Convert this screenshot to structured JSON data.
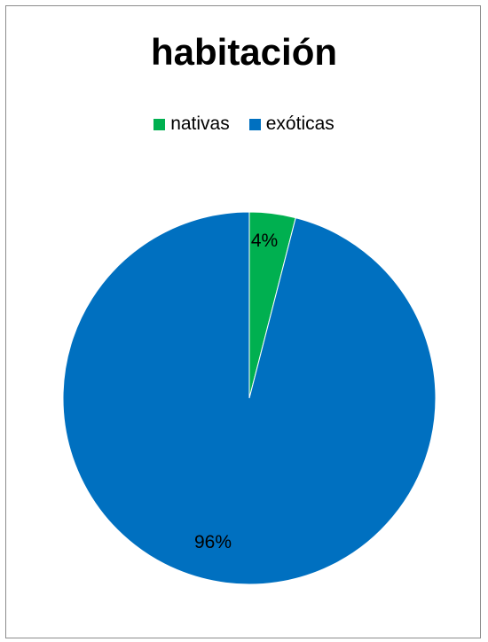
{
  "chart_data": {
    "type": "pie",
    "title": "habitación",
    "legend_position": "top",
    "slices": [
      {
        "label": "nativas",
        "value": 4,
        "data_label": "4%",
        "color": "#00b050"
      },
      {
        "label": "exóticas",
        "value": 96,
        "data_label": "96%",
        "color": "#0070c0"
      }
    ]
  }
}
